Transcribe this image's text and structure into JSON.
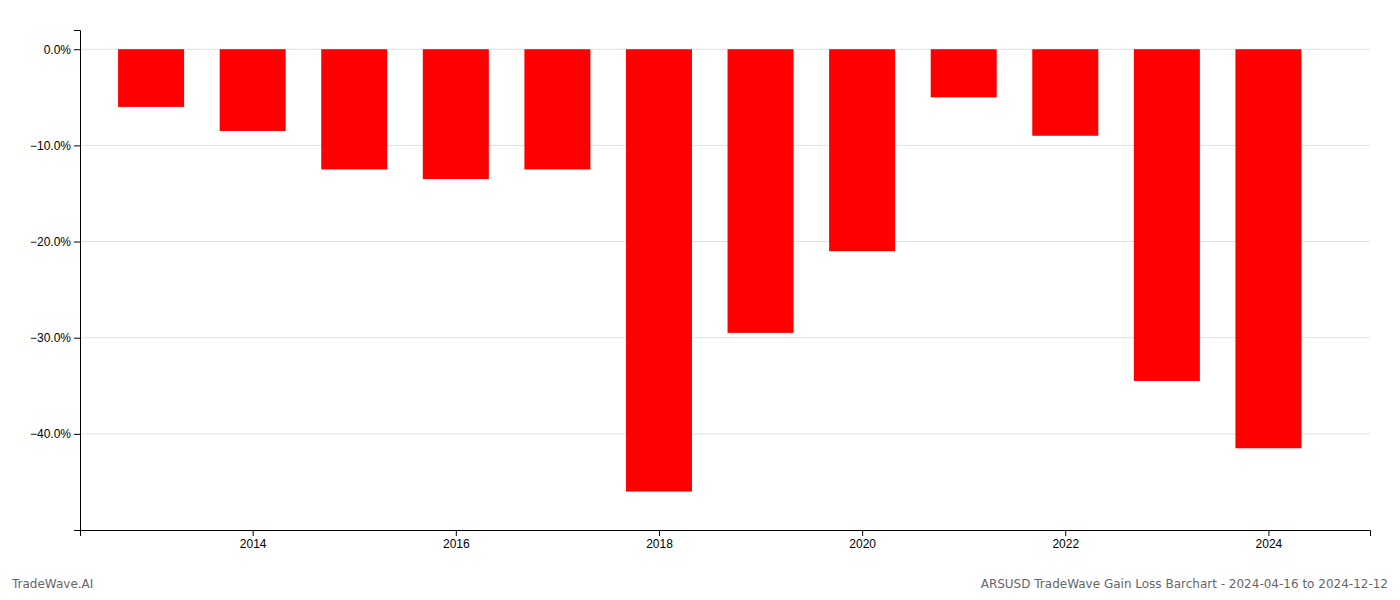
{
  "chart_data": {
    "type": "bar",
    "x": [
      2013,
      2014,
      2015,
      2016,
      2017,
      2018,
      2019,
      2020,
      2021,
      2022,
      2023,
      2024
    ],
    "values": [
      -6.0,
      -8.5,
      -12.5,
      -13.5,
      -12.5,
      -46.0,
      -29.5,
      -21.0,
      -5.0,
      -9.0,
      -34.5,
      -41.5
    ],
    "color": "#ff0000",
    "xlim": [
      2012.3,
      2025.0
    ],
    "xticks": [
      2014,
      2016,
      2018,
      2020,
      2022,
      2024
    ],
    "ylim": [
      -50,
      2
    ],
    "yticks": [
      {
        "value": 0.0,
        "label": "0.0%"
      },
      {
        "value": -10.0,
        "label": "−10.0%"
      },
      {
        "value": -20.0,
        "label": "−20.0%"
      },
      {
        "value": -30.0,
        "label": "−30.0%"
      },
      {
        "value": -40.0,
        "label": "−40.0%"
      }
    ],
    "grid": "y",
    "annotations": [
      "TradeWave.AI",
      "ARSUSD TradeWave Gain Loss Barchart - 2024-04-16 to 2024-12-12"
    ]
  }
}
